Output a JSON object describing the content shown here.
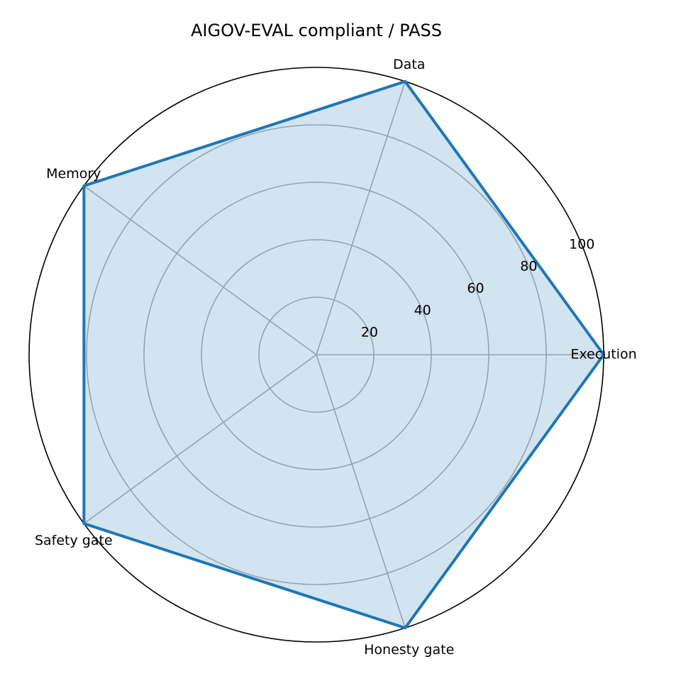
{
  "chart_data": {
    "type": "radar",
    "title": "AIGOV-EVAL compliant / PASS",
    "categories": [
      "Execution",
      "Data",
      "Memory",
      "Safety gate",
      "Honesty gate"
    ],
    "series": [
      {
        "values": [
          100,
          100,
          100,
          100,
          100
        ],
        "color": "#1f77b4",
        "fill_color": "#1f77b4",
        "fill_opacity": 0.2
      }
    ],
    "rlim": [
      0,
      100
    ],
    "r_ticks": [
      20,
      40,
      60,
      80,
      100
    ],
    "r_tick_labels": [
      "20",
      "40",
      "60",
      "80",
      "100"
    ],
    "grid": true,
    "legend": "none"
  }
}
